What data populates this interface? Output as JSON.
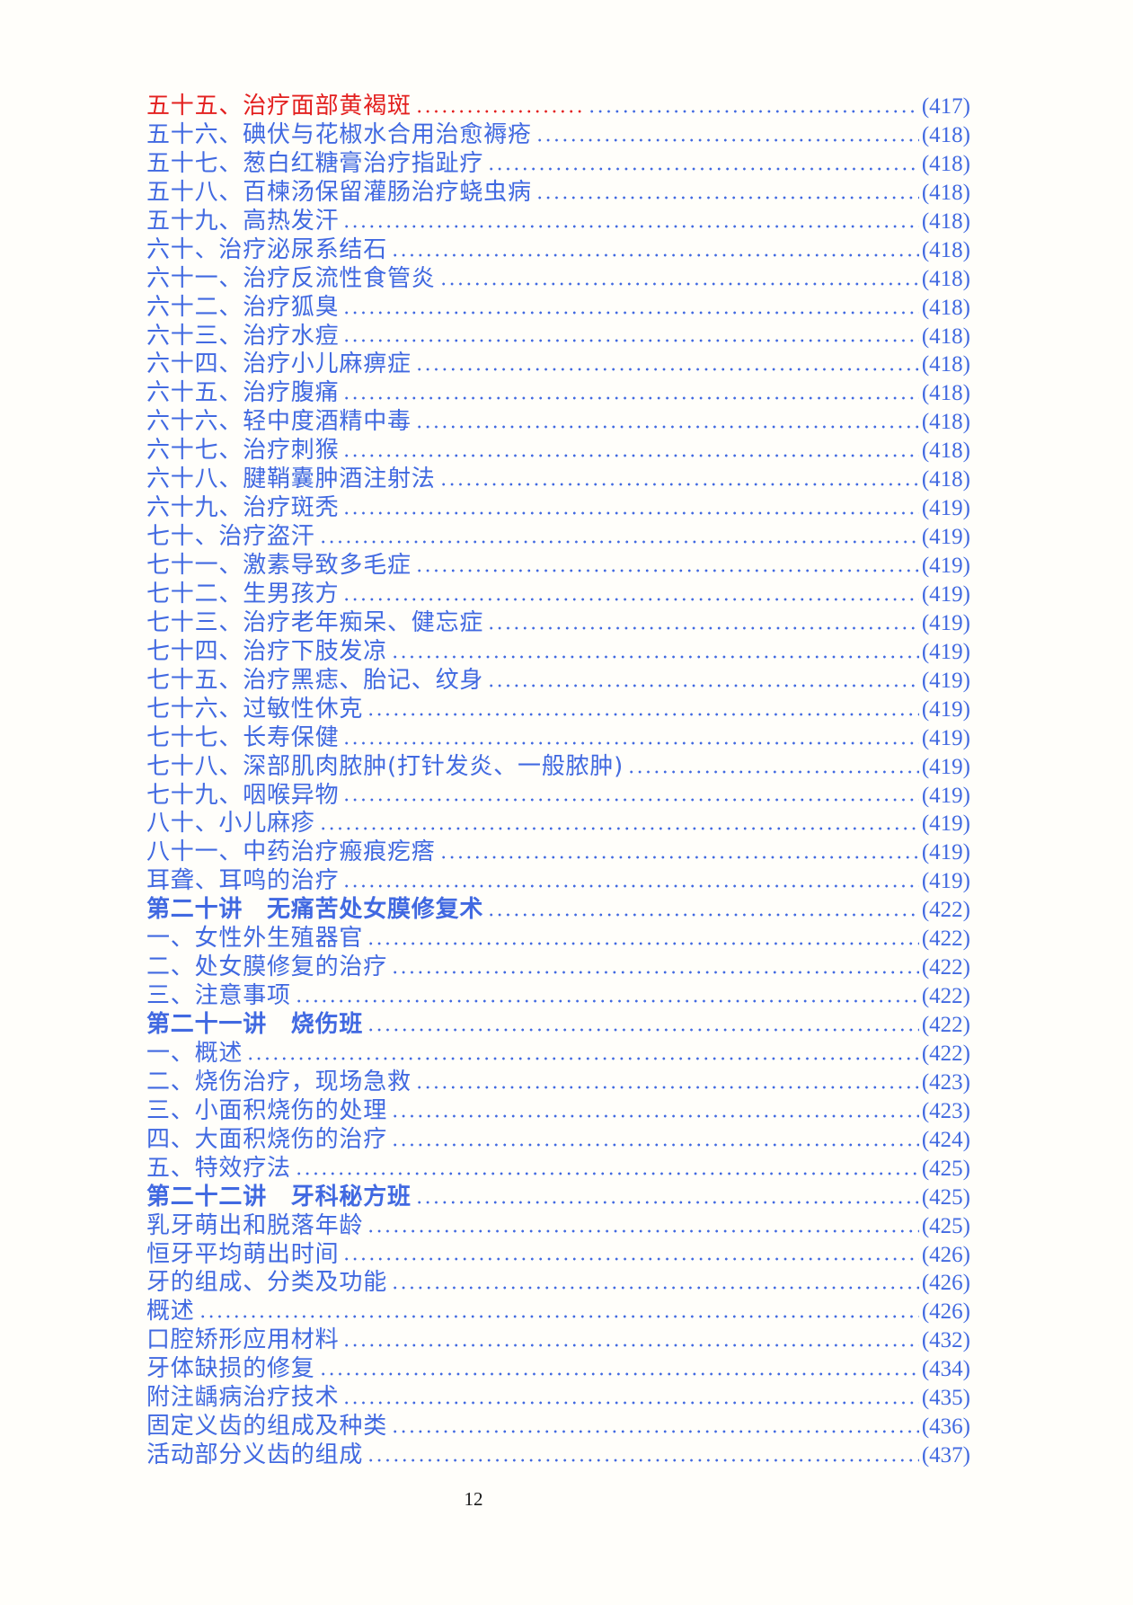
{
  "colors": {
    "link_blue": "#4169e1",
    "highlight_red": "#e3201f",
    "footer_black": "#181818",
    "page_background": "#fffefa"
  },
  "footer": {
    "page_number": "12"
  },
  "toc": {
    "entries": [
      {
        "title": "五十五、治疗面部黄褐斑",
        "page": "(417)",
        "style": "red"
      },
      {
        "title": "五十六、碘伏与花椒水合用治愈褥疮",
        "page": "(418)",
        "style": "normal"
      },
      {
        "title": "五十七、葱白红糖膏治疗指趾疗",
        "page": "(418)",
        "style": "normal"
      },
      {
        "title": "五十八、百楝汤保留灌肠治疗蛲虫病",
        "page": "(418)",
        "style": "normal"
      },
      {
        "title": "五十九、高热发汗",
        "page": "(418)",
        "style": "normal"
      },
      {
        "title": "六十、治疗泌尿系结石",
        "page": "(418)",
        "style": "normal"
      },
      {
        "title": "六十一、治疗反流性食管炎",
        "page": "(418)",
        "style": "normal"
      },
      {
        "title": "六十二、治疗狐臭",
        "page": "(418)",
        "style": "normal"
      },
      {
        "title": "六十三、治疗水痘",
        "page": "(418)",
        "style": "normal"
      },
      {
        "title": "六十四、治疗小儿麻痹症",
        "page": "(418)",
        "style": "normal"
      },
      {
        "title": "六十五、治疗腹痛",
        "page": "(418)",
        "style": "normal"
      },
      {
        "title": "六十六、轻中度酒精中毒",
        "page": "(418)",
        "style": "normal"
      },
      {
        "title": "六十七、治疗刺猴",
        "page": "(418)",
        "style": "normal"
      },
      {
        "title": "六十八、腱鞘囊肿酒注射法",
        "page": "(418)",
        "style": "normal"
      },
      {
        "title": "六十九、治疗斑秃",
        "page": "(419)",
        "style": "normal"
      },
      {
        "title": "七十、治疗盗汗",
        "page": "(419)",
        "style": "normal"
      },
      {
        "title": "七十一、激素导致多毛症",
        "page": "(419)",
        "style": "normal"
      },
      {
        "title": "七十二、生男孩方",
        "page": "(419)",
        "style": "normal"
      },
      {
        "title": "七十三、治疗老年痴呆、健忘症",
        "page": "(419)",
        "style": "normal"
      },
      {
        "title": "七十四、治疗下肢发凉",
        "page": "(419)",
        "style": "normal"
      },
      {
        "title": "七十五、治疗黑痣、胎记、纹身",
        "page": "(419)",
        "style": "normal"
      },
      {
        "title": "七十六、过敏性休克",
        "page": "(419)",
        "style": "normal"
      },
      {
        "title": "七十七、长寿保健",
        "page": "(419)",
        "style": "normal"
      },
      {
        "title": "七十八、深部肌肉脓肿(打针发炎、一般脓肿)",
        "page": "(419)",
        "style": "normal"
      },
      {
        "title": "七十九、咽喉异物",
        "page": "(419)",
        "style": "normal"
      },
      {
        "title": "八十、小儿麻疹",
        "page": "(419)",
        "style": "normal"
      },
      {
        "title": "八十一、中药治疗瘢痕疙瘩",
        "page": "(419)",
        "style": "normal"
      },
      {
        "title": "耳聋、耳鸣的治疗",
        "page": "(419)",
        "style": "normal"
      },
      {
        "title": "第二十讲　无痛苦处女膜修复术",
        "page": "(422)",
        "style": "bold"
      },
      {
        "title": "一、女性外生殖器官",
        "page": "(422)",
        "style": "normal"
      },
      {
        "title": "二、处女膜修复的治疗",
        "page": "(422)",
        "style": "normal"
      },
      {
        "title": "三、注意事项",
        "page": "(422)",
        "style": "normal"
      },
      {
        "title": "第二十一讲　烧伤班",
        "page": "(422)",
        "style": "bold"
      },
      {
        "title": "一、概述",
        "page": "(422)",
        "style": "normal"
      },
      {
        "title": "二、烧伤治疗，现场急救",
        "page": "(423)",
        "style": "normal"
      },
      {
        "title": "三、小面积烧伤的处理",
        "page": "(423)",
        "style": "normal"
      },
      {
        "title": "四、大面积烧伤的治疗",
        "page": "(424)",
        "style": "normal"
      },
      {
        "title": "五、特效疗法",
        "page": "(425)",
        "style": "normal"
      },
      {
        "title": "第二十二讲　牙科秘方班",
        "page": "(425)",
        "style": "bold"
      },
      {
        "title": "乳牙萌出和脱落年龄",
        "page": "(425)",
        "style": "normal"
      },
      {
        "title": "恒牙平均萌出时间",
        "page": "(426)",
        "style": "normal"
      },
      {
        "title": "牙的组成、分类及功能",
        "page": "(426)",
        "style": "normal"
      },
      {
        "title": "概述",
        "page": "(426)",
        "style": "normal"
      },
      {
        "title": "口腔矫形应用材料",
        "page": "(432)",
        "style": "normal"
      },
      {
        "title": "牙体缺损的修复",
        "page": "(434)",
        "style": "normal"
      },
      {
        "title": "附注龋病治疗技术",
        "page": "(435)",
        "style": "normal"
      },
      {
        "title": "固定义齿的组成及种类",
        "page": "(436)",
        "style": "normal"
      },
      {
        "title": "活动部分义齿的组成",
        "page": "(437)",
        "style": "normal"
      }
    ]
  }
}
